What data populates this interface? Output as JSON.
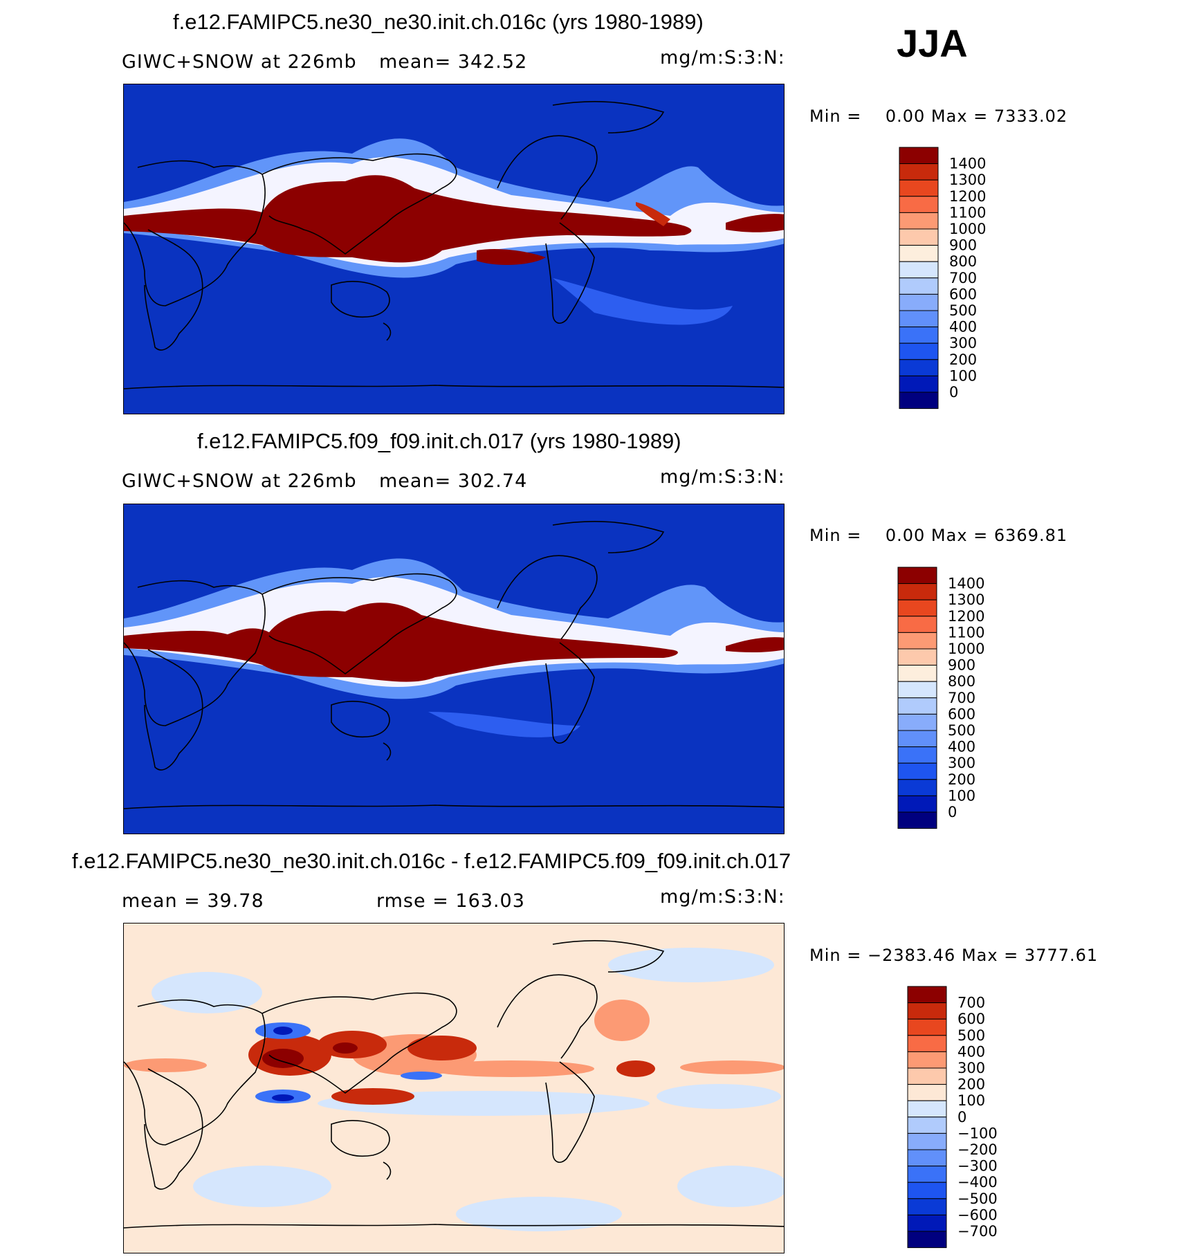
{
  "season": "JJA",
  "panels": [
    {
      "title": "f.e12.FAMIPC5.ne30_ne30.init.ch.016c (yrs 1980-1989)",
      "left_label": "GIWC+SNOW at 226mb",
      "stat_label": "mean= 342.52",
      "units": "mg/m:S:3:N:",
      "minmax": "Min =    0.00 Max = 7333.02"
    },
    {
      "title": "f.e12.FAMIPC5.f09_f09.init.ch.017 (yrs 1980-1989)",
      "left_label": "GIWC+SNOW at 226mb",
      "stat_label": "mean= 302.74",
      "units": "mg/m:S:3:N:",
      "minmax": "Min =    0.00 Max = 6369.81"
    },
    {
      "title": "f.e12.FAMIPC5.ne30_ne30.init.ch.016c - f.e12.FAMIPC5.f09_f09.init.ch.017",
      "left_label": "mean =  39.78",
      "stat_label": "rmse = 163.03",
      "units": "mg/m:S:3:N:",
      "minmax": "Min = −2383.46 Max = 3777.61"
    }
  ],
  "chart_data": [
    {
      "type": "heatmap",
      "title": "f.e12.FAMIPC5.ne30_ne30.init.ch.016c (yrs 1980-1989)",
      "variable": "GIWC+SNOW at 226mb",
      "units": "mg/m:S:3:N:",
      "mean": 342.52,
      "min": 0.0,
      "max": 7333.02,
      "contour_levels": [
        0,
        100,
        200,
        300,
        400,
        500,
        600,
        700,
        800,
        900,
        1000,
        1100,
        1200,
        1300,
        1400
      ],
      "level_labels": [
        "1400",
        "1300",
        "1200",
        "1100",
        "1000",
        "900",
        "800",
        "700",
        "600",
        "500",
        "400",
        "300",
        "200",
        "100",
        "0"
      ],
      "colors": [
        "#00007f",
        "#0019b8",
        "#0a3ad6",
        "#1e55f0",
        "#3a72f8",
        "#6190fa",
        "#88acfb",
        "#b0cbfc",
        "#d5e6fd",
        "#fdeedd",
        "#fdc9ac",
        "#fc9a74",
        "#f86b45",
        "#e8471f",
        "#c82a0c",
        "#8c0000"
      ]
    },
    {
      "type": "heatmap",
      "title": "f.e12.FAMIPC5.f09_f09.init.ch.017 (yrs 1980-1989)",
      "variable": "GIWC+SNOW at 226mb",
      "units": "mg/m:S:3:N:",
      "mean": 302.74,
      "min": 0.0,
      "max": 6369.81,
      "contour_levels": [
        0,
        100,
        200,
        300,
        400,
        500,
        600,
        700,
        800,
        900,
        1000,
        1100,
        1200,
        1300,
        1400
      ],
      "level_labels": [
        "1400",
        "1300",
        "1200",
        "1100",
        "1000",
        "900",
        "800",
        "700",
        "600",
        "500",
        "400",
        "300",
        "200",
        "100",
        "0"
      ],
      "colors": [
        "#00007f",
        "#0019b8",
        "#0a3ad6",
        "#1e55f0",
        "#3a72f8",
        "#6190fa",
        "#88acfb",
        "#b0cbfc",
        "#d5e6fd",
        "#fdeedd",
        "#fdc9ac",
        "#fc9a74",
        "#f86b45",
        "#e8471f",
        "#c82a0c",
        "#8c0000"
      ]
    },
    {
      "type": "heatmap",
      "title": "f.e12.FAMIPC5.ne30_ne30.init.ch.016c - f.e12.FAMIPC5.f09_f09.init.ch.017",
      "units": "mg/m:S:3:N:",
      "mean": 39.78,
      "rmse": 163.03,
      "min": -2383.46,
      "max": 3777.61,
      "contour_levels": [
        -700,
        -600,
        -500,
        -400,
        -300,
        -200,
        -100,
        0,
        100,
        200,
        300,
        400,
        500,
        600,
        700
      ],
      "level_labels": [
        "700",
        "600",
        "500",
        "400",
        "300",
        "200",
        "100",
        "0",
        "−100",
        "−200",
        "−300",
        "−400",
        "−500",
        "−600",
        "−700"
      ],
      "colors": [
        "#00007f",
        "#0019b8",
        "#0a3ad6",
        "#1e55f0",
        "#3a72f8",
        "#6190fa",
        "#88acfb",
        "#b0cbfc",
        "#d5e6fd",
        "#fde8d6",
        "#fdc9ac",
        "#fc9a74",
        "#f86b45",
        "#e8471f",
        "#c82a0c",
        "#8c0000"
      ]
    }
  ]
}
